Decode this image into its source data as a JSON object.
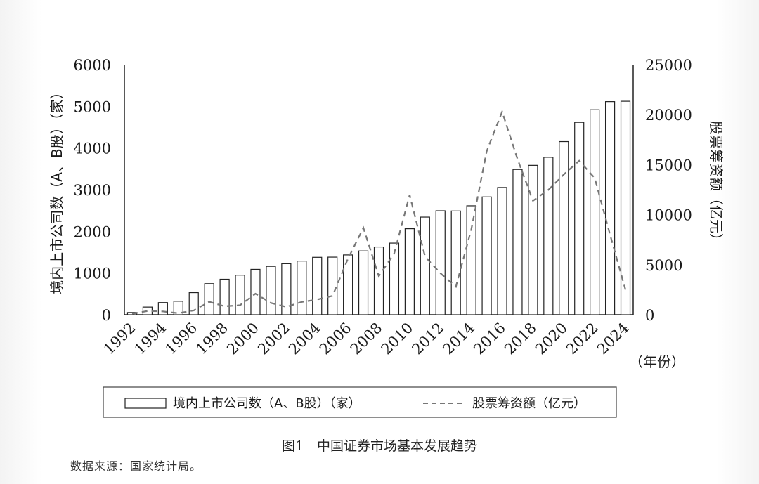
{
  "chart_data": {
    "type": "bar",
    "x": [
      "1992",
      "1993",
      "1994",
      "1995",
      "1996",
      "1997",
      "1998",
      "1999",
      "2000",
      "2001",
      "2002",
      "2003",
      "2004",
      "2005",
      "2006",
      "2007",
      "2008",
      "2009",
      "2010",
      "2011",
      "2012",
      "2013",
      "2014",
      "2015",
      "2016",
      "2017",
      "2018",
      "2019",
      "2020",
      "2021",
      "2022",
      "2023",
      "2024"
    ],
    "x_tick_labels": [
      "1992",
      "1994",
      "1996",
      "1998",
      "2000",
      "2002",
      "2004",
      "2006",
      "2008",
      "2010",
      "2012",
      "2014",
      "2016",
      "2018",
      "2020",
      "2022",
      "2024"
    ],
    "series": [
      {
        "name": "境内上市公司数（A、B股）（家）",
        "type": "bar",
        "axis": "left",
        "values": [
          53,
          183,
          291,
          323,
          530,
          745,
          851,
          949,
          1088,
          1160,
          1224,
          1287,
          1377,
          1381,
          1434,
          1530,
          1625,
          1718,
          2063,
          2342,
          2494,
          2489,
          2613,
          2827,
          3052,
          3485,
          3584,
          3777,
          4154,
          4615,
          4917,
          5113,
          5122
        ]
      },
      {
        "name": "股票筹资额（亿元）",
        "type": "line",
        "style": "dashed",
        "axis": "right",
        "values": [
          94,
          375,
          327,
          150,
          425,
          1294,
          842,
          945,
          2103,
          1182,
          780,
          1280,
          1508,
          1883,
          5594,
          8680,
          3852,
          6125,
          11972,
          5815,
          4134,
          2803,
          8522,
          16362,
          20298,
          15536,
          11392,
          12479,
          14022,
          15390,
          13665,
          8000,
          2500
        ]
      }
    ],
    "ylabel_left": "境内上市公司数（A、B股）（家）",
    "ylabel_right": "股票筹资额（亿元）",
    "xlabel": "（年份）",
    "ylim_left": [
      0,
      6000
    ],
    "ylim_right": [
      0,
      25000
    ],
    "yticks_left": [
      "0",
      "1000",
      "2000",
      "3000",
      "4000",
      "5000",
      "6000"
    ],
    "yticks_right": [
      "0",
      "5000",
      "10000",
      "15000",
      "20000",
      "25000"
    ],
    "grid": false,
    "legend_position": "bottom",
    "legend": [
      "境内上市公司数（A、B股）（家）",
      "股票筹资额（亿元）"
    ]
  },
  "caption": "图1　中国证券市场基本发展趋势",
  "source": "数据来源：国家统计局。",
  "colors": {
    "bar_fill": "#ffffff",
    "bar_stroke": "#222222",
    "line": "#777777",
    "axis": "#222222"
  }
}
